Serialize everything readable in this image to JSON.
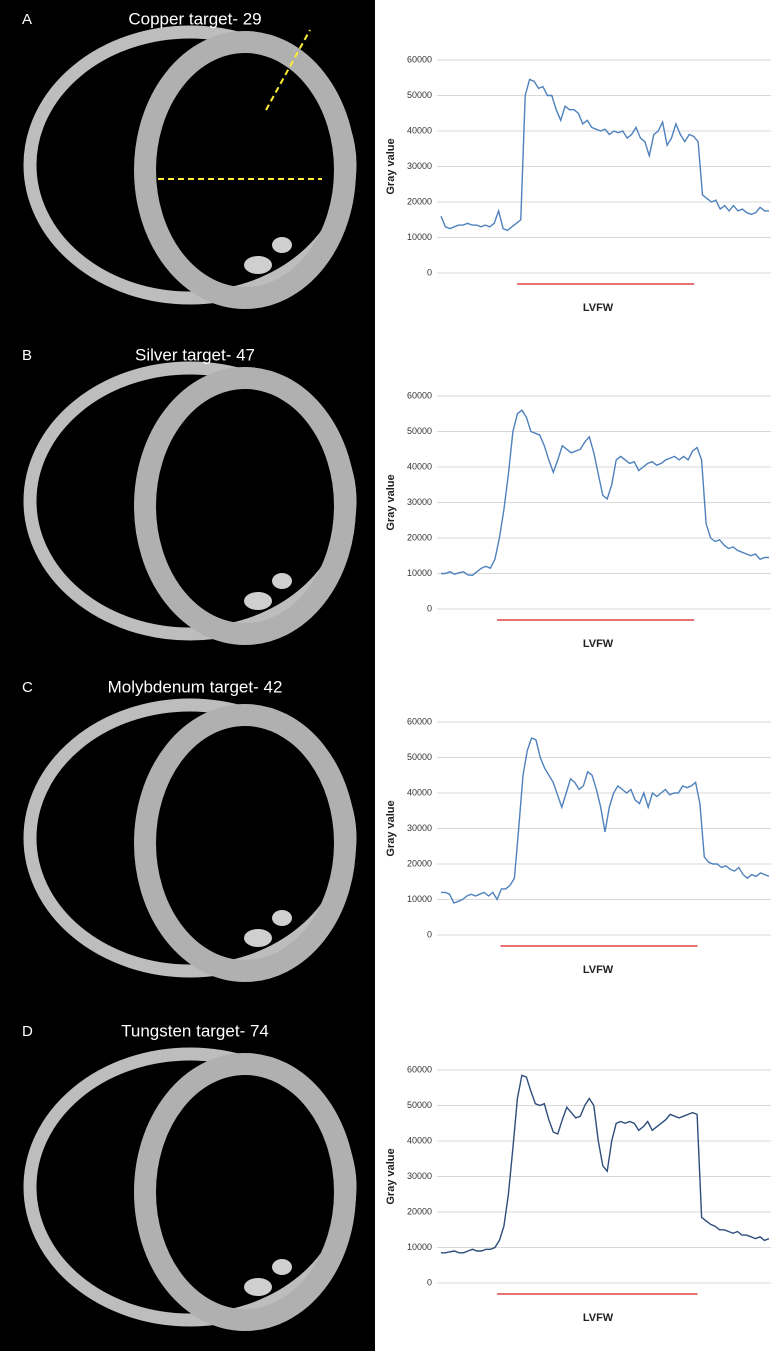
{
  "chart_data": [
    {
      "type": "line",
      "panel_label": "A",
      "image_title": "Copper target- 29",
      "ylabel": "Gray value",
      "xlabel": "LVFW",
      "ylim": [
        0,
        60000
      ],
      "yticks": [
        0,
        10000,
        20000,
        30000,
        40000,
        50000,
        60000
      ],
      "grid": true,
      "color": "#4f81bd",
      "values": [
        16000,
        13000,
        12500,
        13000,
        13500,
        13500,
        14000,
        13500,
        13500,
        13000,
        13500,
        13000,
        14000,
        17500,
        12500,
        12000,
        13000,
        14000,
        15000,
        50000,
        54500,
        54000,
        52000,
        52500,
        50000,
        50000,
        46000,
        43000,
        47000,
        46000,
        46000,
        45000,
        42000,
        43000,
        41000,
        40500,
        40000,
        40500,
        39000,
        40000,
        39500,
        40000,
        38000,
        39000,
        41000,
        38000,
        37000,
        33000,
        39000,
        40000,
        42500,
        36000,
        38000,
        42000,
        39000,
        37000,
        39000,
        38500,
        37000,
        22000,
        21000,
        20000,
        20500,
        18000,
        19000,
        17500,
        19000,
        17500,
        18000,
        17000,
        16500,
        17000,
        18500,
        17500,
        17500
      ]
    },
    {
      "type": "line",
      "panel_label": "B",
      "image_title": "Silver target- 47",
      "ylabel": "Gray value",
      "xlabel": "LVFW",
      "ylim": [
        0,
        60000
      ],
      "yticks": [
        0,
        10000,
        20000,
        30000,
        40000,
        50000,
        60000
      ],
      "grid": true,
      "color": "#4f81bd",
      "values": [
        10000,
        10000,
        10500,
        9800,
        10200,
        10500,
        9600,
        9500,
        10500,
        11500,
        12000,
        11500,
        14000,
        20000,
        28000,
        38000,
        50000,
        55000,
        56000,
        54000,
        50000,
        49500,
        49000,
        46000,
        42000,
        38500,
        42000,
        46000,
        45000,
        44000,
        44500,
        45000,
        47000,
        48500,
        44000,
        38000,
        32000,
        31000,
        35000,
        42000,
        43000,
        42000,
        41000,
        41500,
        39000,
        40000,
        41000,
        41500,
        40500,
        41000,
        42000,
        42500,
        43000,
        42000,
        43000,
        42000,
        44500,
        45500,
        42000,
        24000,
        20000,
        19000,
        19500,
        18000,
        17000,
        17500,
        16500,
        16000,
        15500,
        15000,
        15500,
        14000,
        14500,
        14500
      ]
    },
    {
      "type": "line",
      "panel_label": "C",
      "image_title": "Molybdenum target- 42",
      "ylabel": "Gray value",
      "xlabel": "LVFW",
      "ylim": [
        0,
        60000
      ],
      "yticks": [
        0,
        10000,
        20000,
        30000,
        40000,
        50000,
        60000
      ],
      "grid": true,
      "color": "#4f81bd",
      "values": [
        12000,
        12000,
        11500,
        9000,
        9500,
        10000,
        11000,
        11500,
        11000,
        11500,
        12000,
        11000,
        12000,
        10000,
        13000,
        13000,
        14000,
        16000,
        30000,
        45000,
        52000,
        55500,
        55000,
        50000,
        47000,
        45000,
        43000,
        39500,
        36000,
        40000,
        44000,
        43000,
        41000,
        42000,
        46000,
        45000,
        41000,
        36000,
        29000,
        36000,
        40000,
        42000,
        41000,
        40000,
        41000,
        38000,
        37000,
        40000,
        36000,
        40000,
        39000,
        40000,
        41000,
        39500,
        40000,
        40000,
        42000,
        41500,
        42000,
        43000,
        37000,
        22000,
        20500,
        20000,
        20000,
        19000,
        19500,
        18500,
        18000,
        19000,
        17000,
        16000,
        17000,
        16500,
        17500,
        17000,
        16500
      ]
    },
    {
      "type": "line",
      "panel_label": "D",
      "image_title": "Tungsten target- 74",
      "ylabel": "Gray value",
      "xlabel": "LVFW",
      "ylim": [
        0,
        60000
      ],
      "yticks": [
        0,
        10000,
        20000,
        30000,
        40000,
        50000,
        60000
      ],
      "grid": true,
      "color": "#2e4d7b",
      "values": [
        8500,
        8500,
        8800,
        9000,
        8500,
        8500,
        9000,
        9500,
        9000,
        9000,
        9500,
        9500,
        10000,
        12000,
        16000,
        25000,
        38000,
        52000,
        58500,
        58000,
        54000,
        50500,
        50000,
        50500,
        46000,
        42500,
        42000,
        46000,
        49500,
        48000,
        46500,
        47000,
        50000,
        52000,
        50000,
        40000,
        33000,
        31500,
        40000,
        45000,
        45500,
        45000,
        45500,
        45000,
        43000,
        44000,
        45500,
        43000,
        44000,
        45000,
        46000,
        47500,
        47000,
        46500,
        47000,
        47500,
        48000,
        47500,
        18500,
        17500,
        16500,
        16000,
        15000,
        15000,
        14500,
        14000,
        14500,
        13500,
        13500,
        13000,
        12500,
        13000,
        12000,
        12500
      ]
    }
  ]
}
